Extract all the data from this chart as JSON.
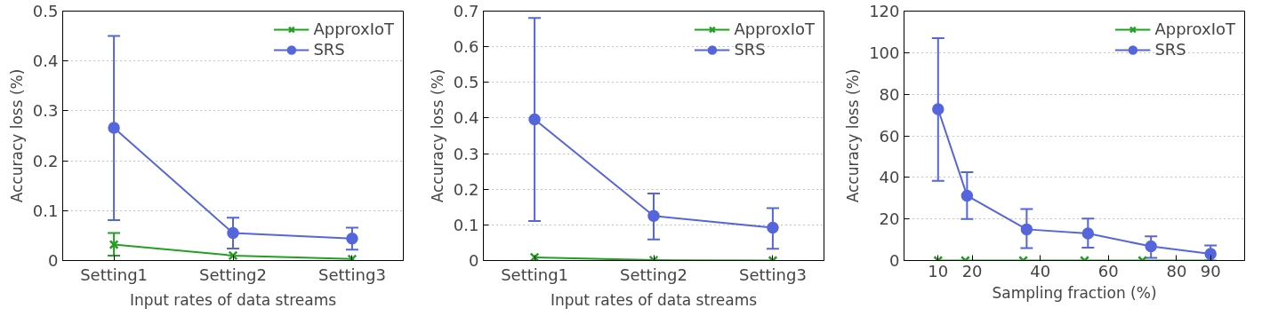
{
  "chart_data": [
    {
      "type": "line",
      "categories": [
        "Setting1",
        "Setting2",
        "Setting3"
      ],
      "xlabel": "Input rates of data streams",
      "ylabel": "Accuracy loss (%)",
      "ylim": [
        0,
        0.5
      ],
      "yticks": [
        0,
        0.1,
        0.2,
        0.3,
        0.4,
        0.5
      ],
      "grid": "y",
      "legend": "top right",
      "series": [
        {
          "name": "ApproxIoT",
          "color": "#22a022",
          "marker": "cross",
          "values": [
            0.032,
            0.01,
            0.003
          ],
          "errors": [
            [
              0.01,
              0.055
            ],
            null,
            null
          ]
        },
        {
          "name": "SRS",
          "color": "#5566dd",
          "marker": "circle",
          "values": [
            0.266,
            0.055,
            0.044
          ],
          "errors": [
            [
              0.081,
              0.45
            ],
            [
              0.024,
              0.086
            ],
            [
              0.022,
              0.066
            ]
          ]
        }
      ]
    },
    {
      "type": "line",
      "categories": [
        "Setting1",
        "Setting2",
        "Setting3"
      ],
      "xlabel": "Input rates of data streams",
      "ylabel": "Accuracy loss (%)",
      "ylim": [
        0,
        0.7
      ],
      "yticks": [
        0,
        0.1,
        0.2,
        0.3,
        0.4,
        0.5,
        0.6,
        0.7
      ],
      "grid": "y",
      "legend": "top right",
      "series": [
        {
          "name": "ApproxIoT",
          "color": "#22a022",
          "marker": "cross",
          "values": [
            0.009,
            0.001,
            0.0
          ]
        },
        {
          "name": "SRS",
          "color": "#5566dd",
          "marker": "circle",
          "values": [
            0.396,
            0.125,
            0.092
          ],
          "errors": [
            [
              0.111,
              0.681
            ],
            [
              0.059,
              0.188
            ],
            [
              0.033,
              0.147
            ]
          ]
        }
      ]
    },
    {
      "type": "line",
      "xlabel": "Sampling fraction (%)",
      "ylabel": "Accuracy loss (%)",
      "xlim": [
        0,
        100
      ],
      "xticks": [
        10,
        20,
        40,
        60,
        80,
        90
      ],
      "ylim": [
        0,
        120
      ],
      "yticks": [
        0,
        20,
        40,
        60,
        80,
        100,
        120
      ],
      "grid": "y",
      "legend": "top right",
      "series": [
        {
          "name": "ApproxIoT",
          "color": "#22a022",
          "marker": "cross",
          "x": [
            10,
            18,
            35,
            53,
            70,
            90
          ],
          "values": [
            0,
            0,
            0,
            0,
            0,
            0
          ]
        },
        {
          "name": "SRS",
          "color": "#5566dd",
          "marker": "circle",
          "x": [
            10,
            18.5,
            36,
            54,
            72.5,
            90
          ],
          "values": [
            72.8,
            31.2,
            15,
            13,
            6.8,
            3.2
          ],
          "errors": [
            [
              38.3,
              107
            ],
            [
              20,
              42.5
            ],
            [
              6,
              24.8
            ],
            [
              6.2,
              20.2
            ],
            [
              1.3,
              11.6
            ],
            [
              0,
              7.3
            ]
          ]
        }
      ]
    }
  ]
}
